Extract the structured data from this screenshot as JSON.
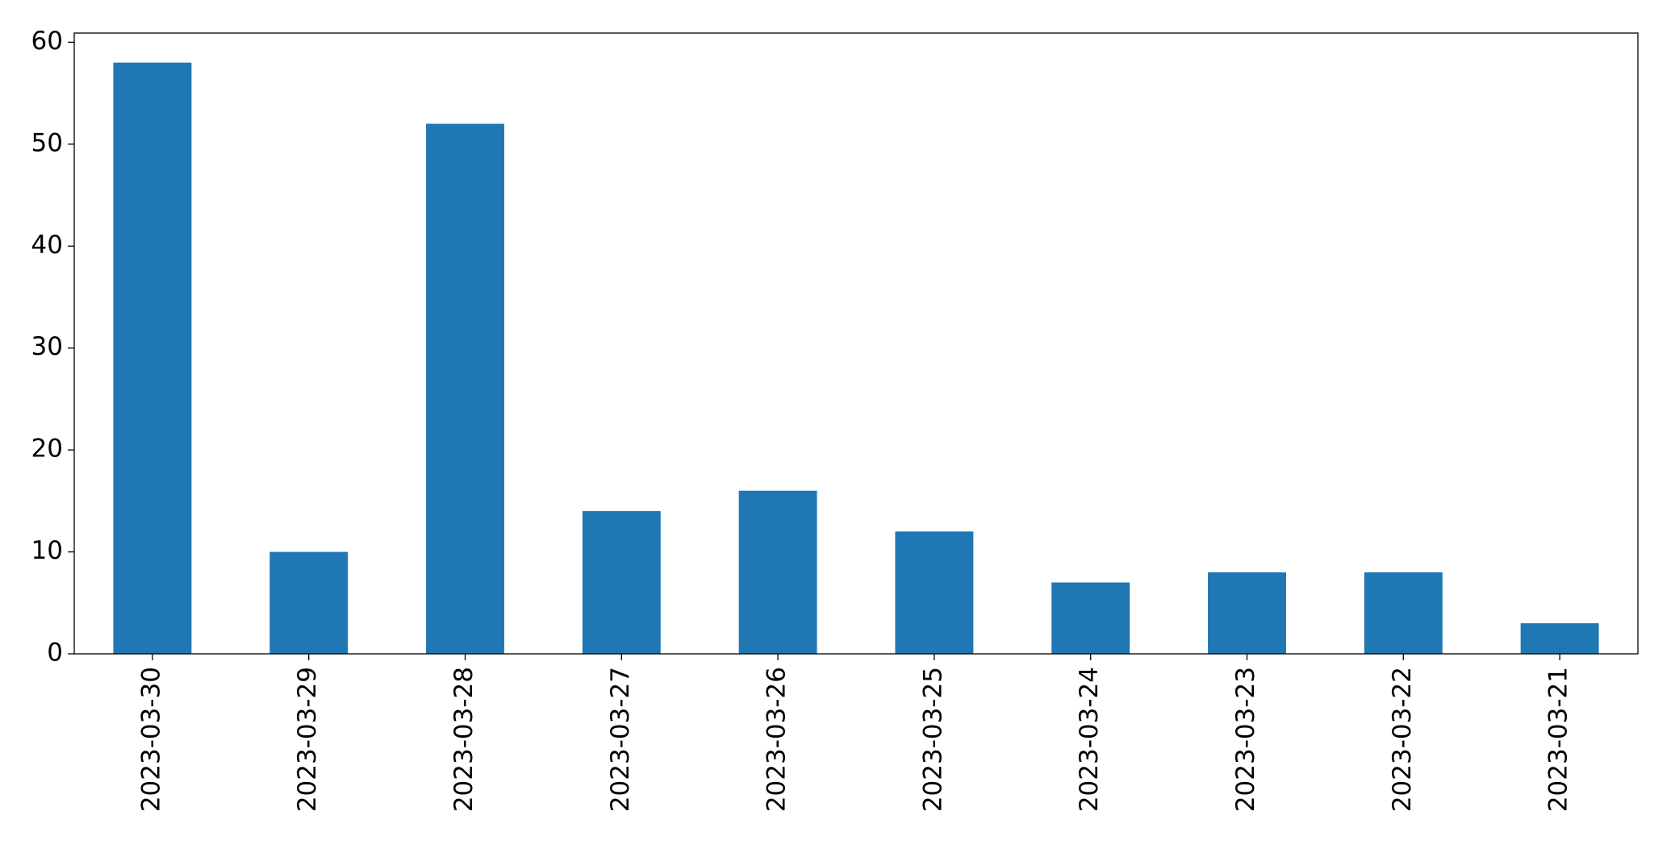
{
  "chart_data": {
    "type": "bar",
    "categories": [
      "2023-03-30",
      "2023-03-29",
      "2023-03-28",
      "2023-03-27",
      "2023-03-26",
      "2023-03-25",
      "2023-03-24",
      "2023-03-23",
      "2023-03-22",
      "2023-03-21"
    ],
    "values": [
      58,
      10,
      52,
      14,
      16,
      12,
      7,
      8,
      8,
      3
    ],
    "color": "#1f77b4",
    "ylim": [
      0,
      60.9
    ],
    "yticks": [
      0,
      10,
      20,
      30,
      40,
      50,
      60
    ],
    "grid": false
  }
}
